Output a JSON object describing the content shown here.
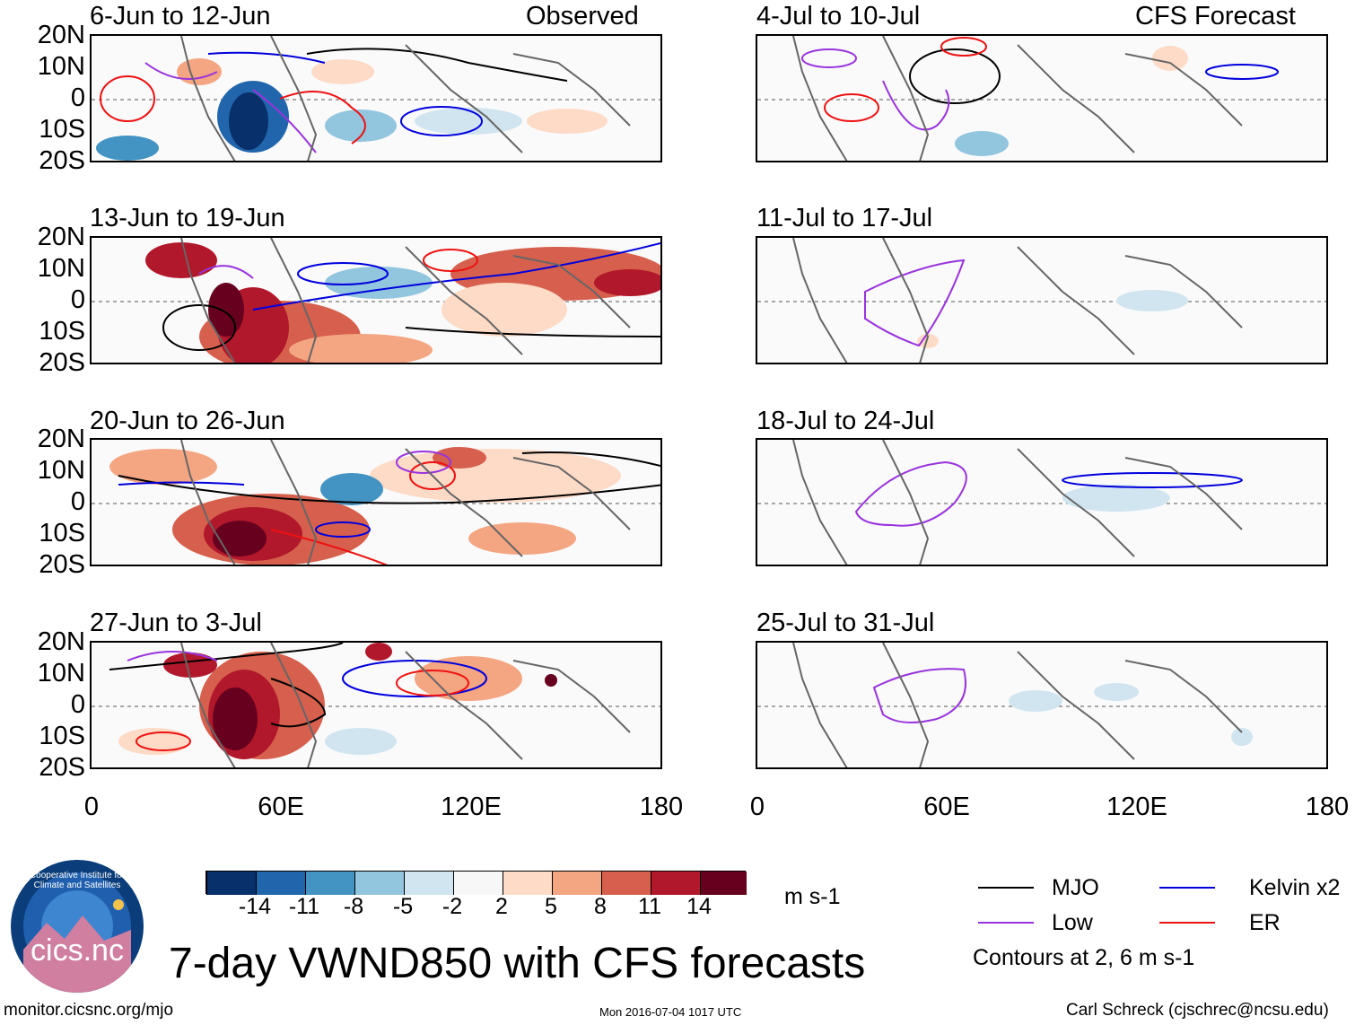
{
  "figure": {
    "title": "7-day VWND850 with CFS forecasts",
    "units": "m s-1",
    "url": "monitor.cicsnc.org/mjo",
    "timestamp": "Mon 2016-07-04 1017 UTC",
    "author": "Carl Schreck (cjschrec@ncsu.edu)",
    "contour_note": "Contours at 2, 6 m s-1"
  },
  "columns": {
    "observed_label": "Observed",
    "forecast_label": "CFS Forecast"
  },
  "observed_panels": [
    {
      "period": "6-Jun to 12-Jun"
    },
    {
      "period": "13-Jun to 19-Jun"
    },
    {
      "period": "20-Jun to 26-Jun"
    },
    {
      "period": "27-Jun to 3-Jul"
    }
  ],
  "forecast_panels": [
    {
      "period": "4-Jul to 10-Jul"
    },
    {
      "period": "11-Jul to 17-Jul"
    },
    {
      "period": "18-Jul to 24-Jul"
    },
    {
      "period": "25-Jul to 31-Jul"
    }
  ],
  "axes": {
    "lat_labels": [
      "20N",
      "10N",
      "0",
      "10S",
      "20S"
    ],
    "lon_labels": [
      "0",
      "60E",
      "120E",
      "180"
    ]
  },
  "colorbar": {
    "colors": [
      "#08306b",
      "#2166ac",
      "#4393c3",
      "#92c5de",
      "#d1e5f0",
      "#f7f7f7",
      "#fddbc7",
      "#f4a582",
      "#d6604d",
      "#b2182b",
      "#67001f"
    ],
    "ticks": [
      "-14",
      "-11",
      "-8",
      "-5",
      "-2",
      "2",
      "5",
      "8",
      "11",
      "14"
    ]
  },
  "legend": [
    {
      "label": "MJO",
      "color": "#000000"
    },
    {
      "label": "Kelvin x2",
      "color": "#0000dd"
    },
    {
      "label": "Low",
      "color": "#9933dd"
    },
    {
      "label": "ER",
      "color": "#ee1111"
    }
  ],
  "logo": {
    "text": "cics.nc",
    "ring_text": "Cooperative Institute for Climate and Satellites"
  }
}
